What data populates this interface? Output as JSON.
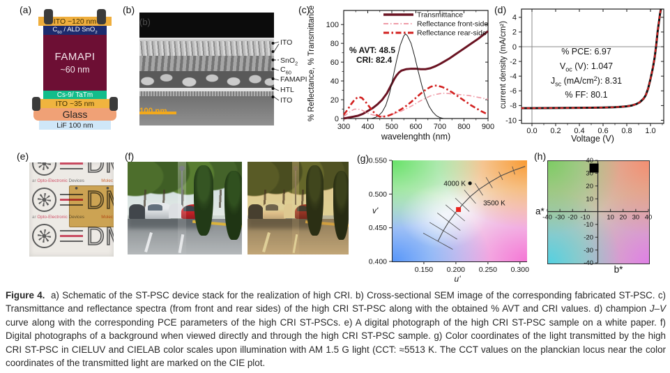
{
  "figure_caption": {
    "parts": [
      {
        "t": "Figure 4.",
        "b": 1
      },
      {
        "t": "  a) Schematic of the ST-PSC device stack for the realization of high CRI. b) Cross-sectional SEM image of the corresponding fabricated ST-PSC. c) Transmittance and reflectance spectra (from front and rear sides) of the high CRI ST-PSC along with the obtained % AVT and CRI values. d) champion "
      },
      {
        "t": "J–V",
        "i": 1
      },
      {
        "t": " curve along with the corresponding PCE parameters of the high CRI ST-PSCs. e) A digital photograph of the high CRI ST-PSC sample on a white paper. f) Digital photographs of a background when viewed directly and through the high CRI ST-PSC sample. g) Color coordinates of the light transmitted by the high CRI ST-PSC in CIELUV and CIELAB color scales upon illumination with AM 1.5 G light (CCT: ≈5513 K. The CCT values on the planckian locus near the color coordinates of the transmitted light are marked on the CIE plot."
      }
    ]
  },
  "panel_a": {
    "label": "(a)",
    "layers": [
      {
        "name": "ito-top",
        "parts": [
          {
            "t": "ITO ~120 nm"
          }
        ],
        "bg": "#efae3d",
        "fg": "#3a2c00"
      },
      {
        "name": "c60-sno2",
        "parts": [
          {
            "t": "C"
          },
          {
            "sub": "60"
          },
          {
            "t": " / ALD SnO"
          },
          {
            "sub": "2"
          }
        ],
        "bg": "#1c2b6e",
        "fg": "#ffffff"
      },
      {
        "name": "famapi",
        "parts": [
          {
            "t": "FAMAPI"
          }
        ],
        "line2": "~60 nm",
        "bg": "#6d0f34",
        "fg": "#f3e6ec"
      },
      {
        "name": "cs9-tatm",
        "parts": [
          {
            "t": "Cs-9/ TaTm"
          }
        ],
        "bg": "#12bd8b",
        "fg": "#ffffff"
      },
      {
        "name": "ito-bottom",
        "parts": [
          {
            "t": "ITO ~35 nm"
          }
        ],
        "bg": "#f0b43f",
        "fg": "#3a2c00"
      },
      {
        "name": "glass",
        "parts": [
          {
            "t": "Glass"
          }
        ],
        "bg": "#f0a176",
        "fg": "#222222"
      },
      {
        "name": "lif",
        "parts": [
          {
            "t": "LiF 100 nm"
          }
        ],
        "bg": "#cfe7f8",
        "fg": "#222222"
      }
    ]
  },
  "panel_b": {
    "label": "(b)",
    "inner_label": "(b)",
    "annotations": [
      {
        "parts": [
          {
            "t": "ITO"
          }
        ]
      },
      {
        "parts": [
          {
            "t": "SnO"
          },
          {
            "sub": "2"
          }
        ]
      },
      {
        "parts": [
          {
            "t": "C"
          },
          {
            "sub": "60"
          }
        ]
      },
      {
        "parts": [
          {
            "t": "FAMAPI"
          }
        ]
      },
      {
        "parts": [
          {
            "t": "HTL"
          }
        ]
      },
      {
        "parts": [
          {
            "t": "ITO"
          }
        ]
      }
    ],
    "scalebar_label": "100 nm"
  },
  "panel_c": {
    "label": "(c)"
  },
  "panel_d": {
    "label": "(d)"
  },
  "panel_e": {
    "label": "(e)",
    "logo_letters": "DM",
    "logo_caption": {
      "prefix": "ar ",
      "brand": "Opto-Electronic",
      "suffix": " Devices",
      "right": "Molec"
    }
  },
  "panel_f": {
    "label": "(f)"
  },
  "panel_g": {
    "label": "(g)"
  },
  "panel_h": {
    "label": "(h)"
  },
  "chart_data": [
    {
      "id": "c",
      "type": "line",
      "xlabel": "wavelenghth (nm)",
      "ylabel": "% Reflectance, % Transmittance",
      "xlim": [
        300,
        900
      ],
      "ylim": [
        0,
        115
      ],
      "xticks": [
        300,
        400,
        500,
        600,
        700,
        800,
        900
      ],
      "yticks": [
        0,
        20,
        40,
        60,
        80,
        100
      ],
      "annotations": [
        "% AVT: 48.5",
        "CRI: 82.4"
      ],
      "legend": [
        "Transmittance",
        "Reflectance front-side",
        "Reflectance rear-side"
      ],
      "series": [
        {
          "name": "Transmittance",
          "color": "#6a1322",
          "width": 3,
          "dash": null,
          "in_legend": true,
          "x": [
            300,
            320,
            340,
            360,
            380,
            400,
            420,
            440,
            460,
            480,
            500,
            510,
            520,
            530,
            540,
            560,
            580,
            600,
            620,
            640,
            660,
            680,
            700,
            720,
            740,
            760,
            780,
            800,
            820,
            840,
            860,
            880,
            900
          ],
          "y": [
            0,
            1,
            2,
            3,
            5,
            8,
            11,
            15,
            20,
            27,
            37,
            42,
            46,
            49,
            51,
            52.5,
            53,
            53,
            52.5,
            52.5,
            53.5,
            55.5,
            58,
            61,
            64,
            67.5,
            71,
            74.5,
            78,
            81.5,
            85,
            89,
            93
          ]
        },
        {
          "name": "Photopic response",
          "color": "#1a1a1a",
          "width": 1,
          "dash": null,
          "in_legend": false,
          "x": [
            415,
            430,
            445,
            460,
            475,
            490,
            505,
            520,
            535,
            550,
            557,
            565,
            580,
            595,
            610,
            625,
            640,
            655,
            670,
            685,
            700,
            715
          ],
          "y": [
            0,
            1,
            3,
            7,
            14,
            26,
            44,
            62,
            78,
            88,
            90,
            88,
            80,
            66,
            50,
            35,
            22,
            13,
            7,
            3,
            1,
            0
          ]
        },
        {
          "name": "Reflectance front-side",
          "color": "#ef9aa6",
          "width": 1.6,
          "dash": "7 3 1.5 3",
          "in_legend": true,
          "x": [
            300,
            315,
            330,
            345,
            360,
            375,
            390,
            405,
            420,
            435,
            450,
            465,
            480,
            500,
            520,
            540,
            560,
            580,
            600,
            620,
            640,
            660,
            680,
            700,
            720,
            740,
            760,
            780,
            800,
            820,
            840,
            860,
            880,
            900
          ],
          "y": [
            2,
            5,
            8,
            10,
            10,
            9,
            7,
            5,
            4,
            3,
            2.5,
            2.5,
            3,
            4.5,
            6,
            8,
            10.5,
            13,
            16,
            19,
            21.5,
            24,
            25.5,
            26.5,
            27,
            26.5,
            26,
            25.5,
            25,
            24.5,
            23.5,
            22.5,
            21.5,
            20.5
          ]
        },
        {
          "name": "Reflectance rear-side",
          "color": "#d2201f",
          "width": 2.6,
          "dash": "8 3.5 2.5 3.5",
          "in_legend": true,
          "x": [
            300,
            315,
            330,
            345,
            360,
            375,
            390,
            405,
            420,
            435,
            450,
            465,
            480,
            500,
            520,
            540,
            560,
            580,
            600,
            620,
            640,
            660,
            675,
            690,
            710,
            730,
            750,
            770,
            790,
            810,
            830,
            850,
            870,
            890,
            900
          ],
          "y": [
            4,
            9,
            15,
            20,
            23,
            22,
            18,
            13,
            8,
            4,
            2,
            2,
            2.5,
            4.5,
            7,
            10,
            13.5,
            17.5,
            22,
            26.5,
            30.5,
            33.5,
            35,
            35,
            33.5,
            31,
            28,
            24.5,
            21,
            17.5,
            14,
            11,
            8,
            5.5,
            4.5
          ]
        }
      ]
    },
    {
      "id": "d",
      "type": "line",
      "xlabel": "Voltage (V)",
      "ylabel": "current density (mA/cm²)",
      "xlim": [
        -0.09,
        1.11
      ],
      "ylim": [
        -10.4,
        5.1
      ],
      "xticks": [
        0.0,
        0.2,
        0.4,
        0.6,
        0.8,
        1.0
      ],
      "xtick_labels": [
        "0.0",
        "0.2",
        "0.4",
        "0.6",
        "0.8",
        "1.0"
      ],
      "yticks": [
        -10,
        -8,
        -6,
        -4,
        -2,
        0,
        2,
        4
      ],
      "params": [
        [
          {
            "t": "% PCE: 6.97"
          }
        ],
        [
          {
            "t": "V"
          },
          {
            "sub": "oc"
          },
          {
            "t": " (V): 1.047"
          }
        ],
        [
          {
            "t": "J"
          },
          {
            "sub": "sc"
          },
          {
            "t": " (mA/cm"
          },
          {
            "sup": "2"
          },
          {
            "t": "): 8.31"
          }
        ],
        [
          {
            "t": "% FF: 80.1"
          }
        ]
      ],
      "series": [
        {
          "name": "J–V champion curve",
          "color": "#cf1f1f",
          "underlay": "#111111",
          "width": 2.2,
          "dash": "4.5 3.5",
          "x": [
            -0.09,
            0,
            0.1,
            0.2,
            0.3,
            0.4,
            0.5,
            0.6,
            0.65,
            0.7,
            0.75,
            0.8,
            0.84,
            0.88,
            0.91,
            0.94,
            0.96,
            0.98,
            1.0,
            1.02,
            1.035,
            1.047,
            1.06,
            1.07,
            1.08,
            1.088
          ],
          "y": [
            -8.35,
            -8.35,
            -8.34,
            -8.33,
            -8.32,
            -8.31,
            -8.29,
            -8.27,
            -8.25,
            -8.22,
            -8.17,
            -8.1,
            -8.0,
            -7.8,
            -7.55,
            -7.1,
            -6.6,
            -5.7,
            -4.4,
            -2.9,
            -1.5,
            0,
            2.0,
            3.2,
            4.4,
            5.1
          ]
        }
      ]
    },
    {
      "id": "g",
      "type": "scatter",
      "xlabel": "u'",
      "ylabel": "v'",
      "xlim": [
        0.1,
        0.31
      ],
      "ylim": [
        0.4,
        0.55
      ],
      "xticks": [
        0.15,
        0.2,
        0.25,
        0.3
      ],
      "xtick_labels": [
        "0.150",
        "0.200",
        "0.250",
        "0.300"
      ],
      "yticks": [
        0.4,
        0.45,
        0.5,
        0.55
      ],
      "ytick_labels": [
        "0.400",
        "0.450",
        "0.500",
        "0.550"
      ],
      "locus": {
        "x": [
          0.172,
          0.18,
          0.189,
          0.199,
          0.21,
          0.222,
          0.236,
          0.252,
          0.27,
          0.29,
          0.308
        ],
        "y": [
          0.43,
          0.445,
          0.459,
          0.472,
          0.484,
          0.496,
          0.507,
          0.517,
          0.527,
          0.535,
          0.541
        ]
      },
      "isotherm_lines": [
        {
          "x1": 0.149,
          "y1": 0.442,
          "x2": 0.195,
          "y2": 0.418
        },
        {
          "x1": 0.159,
          "y1": 0.458,
          "x2": 0.202,
          "y2": 0.433
        },
        {
          "x1": 0.171,
          "y1": 0.472,
          "x2": 0.207,
          "y2": 0.446
        },
        {
          "x1": 0.184,
          "y1": 0.484,
          "x2": 0.214,
          "y2": 0.46
        },
        {
          "x1": 0.199,
          "y1": 0.494,
          "x2": 0.221,
          "y2": 0.474
        },
        {
          "x1": 0.213,
          "y1": 0.506,
          "x2": 0.231,
          "y2": 0.486
        },
        {
          "x1": 0.23,
          "y1": 0.516,
          "x2": 0.242,
          "y2": 0.498
        },
        {
          "x1": 0.247,
          "y1": 0.525,
          "x2": 0.257,
          "y2": 0.509
        },
        {
          "x1": 0.267,
          "y1": 0.533,
          "x2": 0.273,
          "y2": 0.521
        },
        {
          "x1": 0.288,
          "y1": 0.541,
          "x2": 0.292,
          "y2": 0.529
        }
      ],
      "marker": {
        "x": 0.204,
        "y": 0.477,
        "color": "#e8241e",
        "shape": "square"
      },
      "cct_dot": {
        "x": 0.222,
        "y": 0.516,
        "label": "4000 K"
      },
      "extra_label": {
        "text": "3500 K",
        "x": 0.2405,
        "y": 0.4935
      }
    },
    {
      "id": "h",
      "type": "scatter",
      "xlabel": "a*",
      "ylabel": "b*",
      "xlim": [
        -40,
        40
      ],
      "ylim": [
        -40,
        40
      ],
      "xticks": [
        -40,
        -30,
        -20,
        -10,
        10,
        20,
        30,
        40
      ],
      "yticks": [
        -40,
        -30,
        -20,
        -10,
        10,
        20,
        30,
        40
      ],
      "marker": {
        "x": -3,
        "y": 34,
        "color": "#000000",
        "shape": "square"
      }
    }
  ]
}
